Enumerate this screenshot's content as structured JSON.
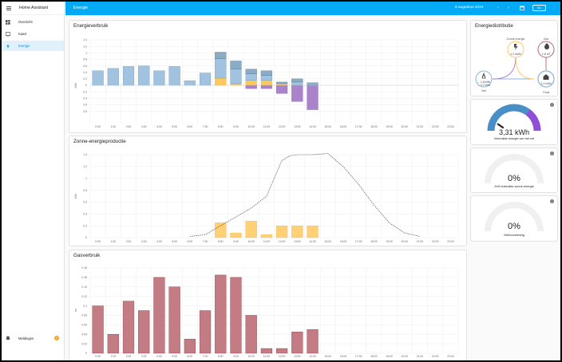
{
  "app": {
    "title": "Home Assistant"
  },
  "sidebar": {
    "items": [
      {
        "label": "Overzicht",
        "icon": "dashboard-icon"
      },
      {
        "label": "Kaart",
        "icon": "map-icon"
      },
      {
        "label": "Energie",
        "icon": "lightning-icon",
        "active": true
      }
    ],
    "notifications": {
      "label": "Meldingen",
      "count": "1"
    }
  },
  "header": {
    "title": "Energie",
    "date": "6 augustus 2024",
    "today_button": "NU"
  },
  "colors": {
    "accent": "#03a9f4",
    "grid": "#8ab4d8",
    "solar": "#ffc85e",
    "battery": "#9b6ec2",
    "grid_return": "#5a89ad",
    "gas": "#b9646f"
  },
  "hours": [
    "0:00",
    "1:00",
    "2:00",
    "3:00",
    "4:00",
    "5:00",
    "6:00",
    "7:00",
    "8:00",
    "9:00",
    "10:00",
    "11:00",
    "12:00",
    "13:00",
    "14:00",
    "15:00",
    "16:00",
    "17:00",
    "18:00",
    "19:00",
    "20:00",
    "21:00",
    "22:00",
    "23:00"
  ],
  "cards": {
    "consumption": {
      "title": "Energieverbruik",
      "ylabel": "kWh"
    },
    "solar": {
      "title": "Zonne-energieproductie",
      "ylabel": "kWh"
    },
    "gas": {
      "title": "Gasverbruik",
      "ylabel": "m³"
    },
    "distribution": {
      "title": "Energiedistributie",
      "solar_label": "Zonne-energie",
      "solar_value": "1,2 kWh",
      "gas_label": "Gas",
      "gas_value": "1,6 m³",
      "grid_label": "Net",
      "grid_in": "← 1,8 kWh",
      "grid_out": "→ 0,7 kWh",
      "home_label": "Thuis",
      "home_value": "3,1 kWh"
    },
    "gauge_grid": {
      "value": "3,31 kWh",
      "label": "Verbruikte energie van het net"
    },
    "gauge_self": {
      "value": "0%",
      "label": "Zelf verbruikte zonne-energie"
    },
    "gauge_autarky": {
      "value": "0%",
      "label": "Zelfvoorziening"
    }
  },
  "chart_data": [
    {
      "type": "bar",
      "title": "Energieverbruik",
      "ylabel": "kWh",
      "categories": [
        "0:00",
        "1:00",
        "2:00",
        "3:00",
        "4:00",
        "5:00",
        "6:00",
        "7:00",
        "8:00",
        "9:00",
        "10:00",
        "11:00",
        "12:00",
        "13:00",
        "14:00",
        "15:00",
        "16:00",
        "17:00",
        "18:00",
        "19:00",
        "20:00",
        "21:00",
        "22:00",
        "23:00"
      ],
      "yticks_pos": [
        "0",
        "0.2",
        "0.4",
        "0.6",
        "0.8",
        "1",
        "1.2",
        "1.4"
      ],
      "yticks_neg": [
        "0",
        "0.2",
        "0.4",
        "0.6",
        "0.8"
      ],
      "series": [
        {
          "values": [
            0.45,
            0.52,
            0.58,
            0.6,
            0.45,
            0.58,
            0.14,
            0.38,
            0.6,
            0.45,
            0.2,
            0.15,
            0,
            0.1,
            0,
            0,
            0,
            0,
            0,
            0,
            0,
            0,
            0,
            0
          ]
        },
        {
          "values": [
            0,
            0,
            0,
            0,
            0,
            0,
            0,
            0,
            0.22,
            0.05,
            0.15,
            0.15,
            0.05,
            0,
            0,
            0,
            0,
            0,
            0,
            0,
            0,
            0,
            0,
            0
          ]
        },
        {
          "values": [
            0,
            0,
            0,
            0,
            0,
            0,
            0,
            0,
            0.2,
            0.25,
            0.15,
            0.15,
            0.05,
            0.1,
            0.08,
            0,
            0,
            0,
            0,
            0,
            0,
            0,
            0,
            0
          ]
        },
        {
          "values": [
            0,
            0,
            0,
            0,
            0,
            0,
            0,
            0,
            0,
            0,
            0.1,
            0.1,
            0.25,
            0.5,
            0.75,
            0,
            0,
            0,
            0,
            0,
            0,
            0,
            0,
            0
          ]
        }
      ]
    },
    {
      "type": "bar",
      "title": "Zonne-energieproductie",
      "ylabel": "kWh",
      "categories": [
        "0:00",
        "1:00",
        "2:00",
        "3:00",
        "4:00",
        "5:00",
        "6:00",
        "7:00",
        "8:00",
        "9:00",
        "10:00",
        "11:00",
        "12:00",
        "13:00",
        "14:00",
        "15:00",
        "16:00",
        "17:00",
        "18:00",
        "19:00",
        "20:00",
        "21:00",
        "22:00",
        "23:00"
      ],
      "yticks": [
        "0",
        "0.2",
        "0.4",
        "0.6",
        "0.8",
        "1",
        "1.2",
        "1.4"
      ],
      "ylim": [
        0,
        1.4
      ],
      "series": [
        {
          "values": [
            0,
            0,
            0,
            0,
            0,
            0,
            0,
            0,
            0.25,
            0.08,
            0.28,
            0.05,
            0.2,
            0.2,
            0.2,
            0,
            0,
            0,
            0,
            0,
            0,
            0,
            0,
            0
          ]
        }
      ],
      "forecast": {
        "x": [
          6,
          7,
          8,
          9,
          10,
          11,
          12,
          12.5,
          13,
          14,
          15,
          16,
          17,
          18,
          19,
          20,
          21
        ],
        "y": [
          0.02,
          0.05,
          0.2,
          0.35,
          0.5,
          0.7,
          1.3,
          1.38,
          1.4,
          1.4,
          1.42,
          1.2,
          0.9,
          0.55,
          0.25,
          0.08,
          0.02
        ]
      }
    },
    {
      "type": "bar",
      "title": "Gasverbruik",
      "ylabel": "m³",
      "categories": [
        "0:00",
        "1:00",
        "2:00",
        "3:00",
        "4:00",
        "5:00",
        "6:00",
        "7:00",
        "8:00",
        "9:00",
        "10:00",
        "11:00",
        "12:00",
        "13:00",
        "14:00",
        "15:00",
        "16:00",
        "17:00",
        "18:00",
        "19:00",
        "20:00",
        "21:00",
        "22:00",
        "23:00"
      ],
      "yticks": [
        "0",
        "0.02",
        "0.04",
        "0.06",
        "0.08",
        "0.1",
        "0.12",
        "0.14",
        "0.16",
        "0.18"
      ],
      "ylim": [
        0,
        0.18
      ],
      "series": [
        {
          "values": [
            0.1,
            0.04,
            0.11,
            0.09,
            0.16,
            0.14,
            0.03,
            0.09,
            0.165,
            0.16,
            0.08,
            0.01,
            0.01,
            0.045,
            0.05,
            0,
            0,
            0,
            0,
            0,
            0,
            0,
            0,
            0
          ]
        }
      ]
    },
    {
      "type": "gauge",
      "title": "Verbruikte energie van het net",
      "series": [
        {
          "values": [
            0.7,
            0.3
          ]
        }
      ]
    }
  ]
}
